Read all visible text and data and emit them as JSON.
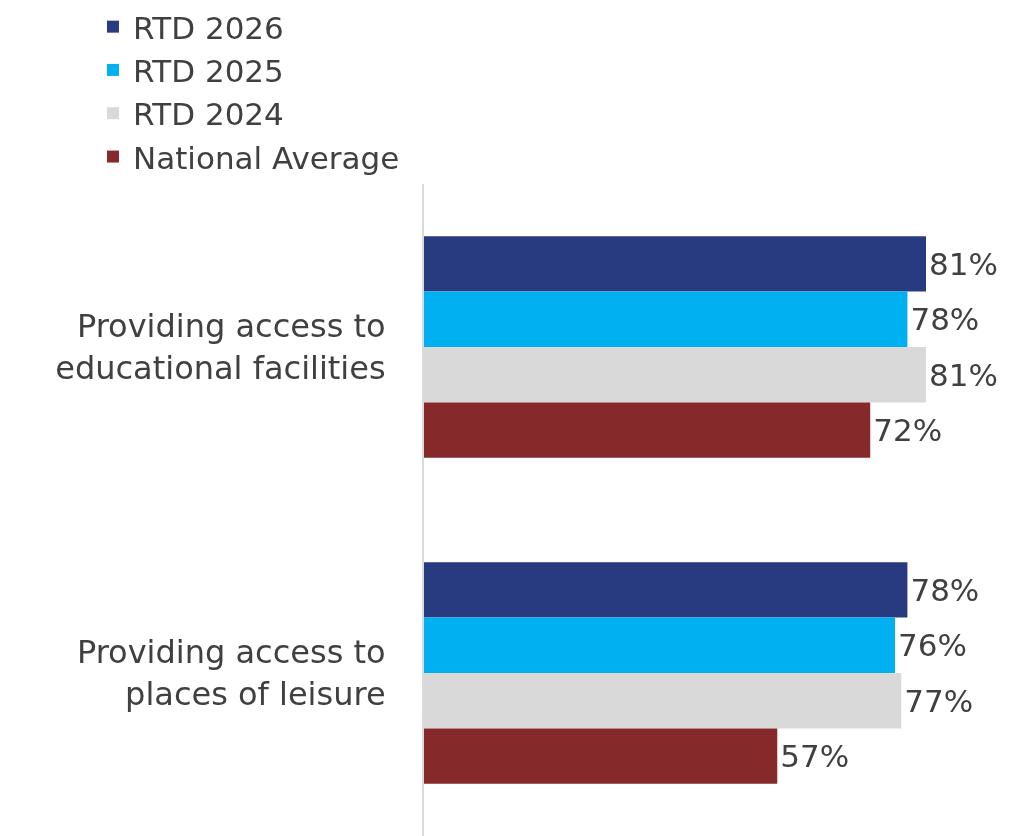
{
  "chart_data": {
    "type": "bar",
    "orientation": "horizontal",
    "categories": [
      "Providing access to educational facilities",
      "Providing access to places of leisure"
    ],
    "series": [
      {
        "name": "RTD 2026",
        "color": "#283a80",
        "values": [
          81,
          78
        ],
        "value_labels": [
          "81%",
          "78%"
        ]
      },
      {
        "name": "RTD 2025",
        "color": "#00b0f0",
        "values": [
          78,
          76
        ],
        "value_labels": [
          "78%",
          "76%"
        ]
      },
      {
        "name": "RTD 2024",
        "color": "#d9d9d9",
        "values": [
          81,
          77
        ],
        "value_labels": [
          "81%",
          "77%"
        ]
      },
      {
        "name": "National Average",
        "color": "#86292b",
        "values": [
          72,
          57
        ],
        "value_labels": [
          "72%",
          "57%"
        ]
      }
    ],
    "legend": "top"
  }
}
